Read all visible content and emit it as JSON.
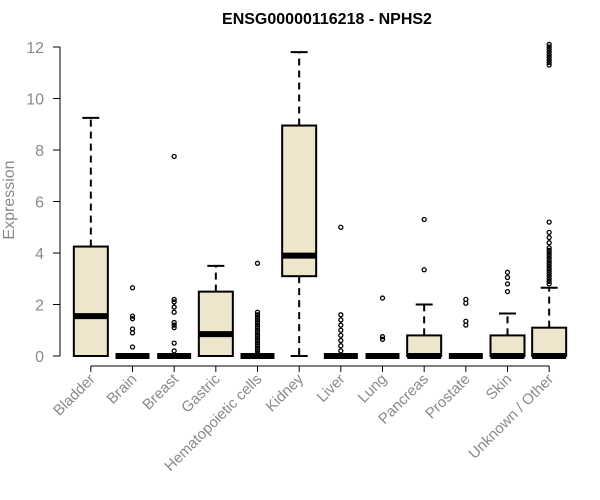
{
  "chart_data": {
    "type": "boxplot",
    "title": "ENSG00000116218 - NPHS2",
    "ylabel": "Expression",
    "xlabel": "",
    "ylim": [
      0,
      12
    ],
    "yticks": [
      0,
      2,
      4,
      6,
      8,
      10,
      12
    ],
    "colors": {
      "box_fill": "#ede6cc",
      "stroke": "#000000",
      "axis_text": "#8a8a8a"
    },
    "categories": [
      "Bladder",
      "Brain",
      "Breast",
      "Gastric",
      "Hematopoietic cells",
      "Kidney",
      "Liver",
      "Lung",
      "Pancreas",
      "Prostate",
      "Skin",
      "Unknown / Other"
    ],
    "series": [
      {
        "category": "Bladder",
        "min": 0,
        "q1": 0,
        "median": 1.55,
        "q3": 4.25,
        "max": 9.25,
        "outliers": []
      },
      {
        "category": "Brain",
        "min": 0,
        "q1": 0,
        "median": 0,
        "q3": 0,
        "max": 0,
        "outliers": [
          0.35,
          0.9,
          1.05,
          1.45,
          1.55,
          2.65
        ]
      },
      {
        "category": "Breast",
        "min": 0,
        "q1": 0,
        "median": 0,
        "q3": 0,
        "max": 0,
        "outliers": [
          0.2,
          0.5,
          1.1,
          1.2,
          1.3,
          1.7,
          1.9,
          2.1,
          2.2,
          7.75
        ]
      },
      {
        "category": "Gastric",
        "min": 0,
        "q1": 0,
        "median": 0.85,
        "q3": 2.5,
        "max": 3.5,
        "outliers": []
      },
      {
        "category": "Hematopoietic cells",
        "min": 0,
        "q1": 0,
        "median": 0,
        "q3": 0,
        "max": 0,
        "outliers": [
          0.1,
          0.2,
          0.3,
          0.4,
          0.5,
          0.6,
          0.7,
          0.8,
          0.9,
          1.0,
          1.1,
          1.2,
          1.3,
          1.4,
          1.5,
          1.6,
          1.7,
          3.6
        ]
      },
      {
        "category": "Kidney",
        "min": 0,
        "q1": 3.1,
        "median": 3.9,
        "q3": 8.95,
        "max": 11.8,
        "outliers": []
      },
      {
        "category": "Liver",
        "min": 0,
        "q1": 0,
        "median": 0,
        "q3": 0,
        "max": 0,
        "outliers": [
          0.2,
          0.4,
          0.6,
          0.8,
          1.0,
          1.2,
          1.4,
          1.6,
          5.0
        ]
      },
      {
        "category": "Lung",
        "min": 0,
        "q1": 0,
        "median": 0,
        "q3": 0,
        "max": 0,
        "outliers": [
          0.65,
          0.75,
          2.25
        ]
      },
      {
        "category": "Pancreas",
        "min": 0,
        "q1": 0,
        "median": 0,
        "q3": 0.8,
        "max": 2.0,
        "outliers": [
          3.35,
          5.3
        ]
      },
      {
        "category": "Prostate",
        "min": 0,
        "q1": 0,
        "median": 0,
        "q3": 0,
        "max": 0,
        "outliers": [
          1.2,
          1.35,
          2.05,
          2.2
        ]
      },
      {
        "category": "Skin",
        "min": 0,
        "q1": 0,
        "median": 0,
        "q3": 0.8,
        "max": 1.65,
        "outliers": [
          2.5,
          2.8,
          3.05,
          3.25
        ]
      },
      {
        "category": "Unknown / Other",
        "min": 0,
        "q1": 0,
        "median": 0,
        "q3": 1.1,
        "max": 2.65,
        "outliers": [
          2.8,
          2.9,
          3.0,
          3.1,
          3.2,
          3.3,
          3.4,
          3.5,
          3.6,
          3.7,
          3.8,
          3.9,
          4.0,
          4.1,
          4.2,
          4.4,
          4.6,
          4.8,
          5.2,
          11.3,
          11.4,
          11.5,
          11.6,
          11.7,
          11.8,
          11.9,
          12.0,
          12.1
        ]
      }
    ]
  }
}
